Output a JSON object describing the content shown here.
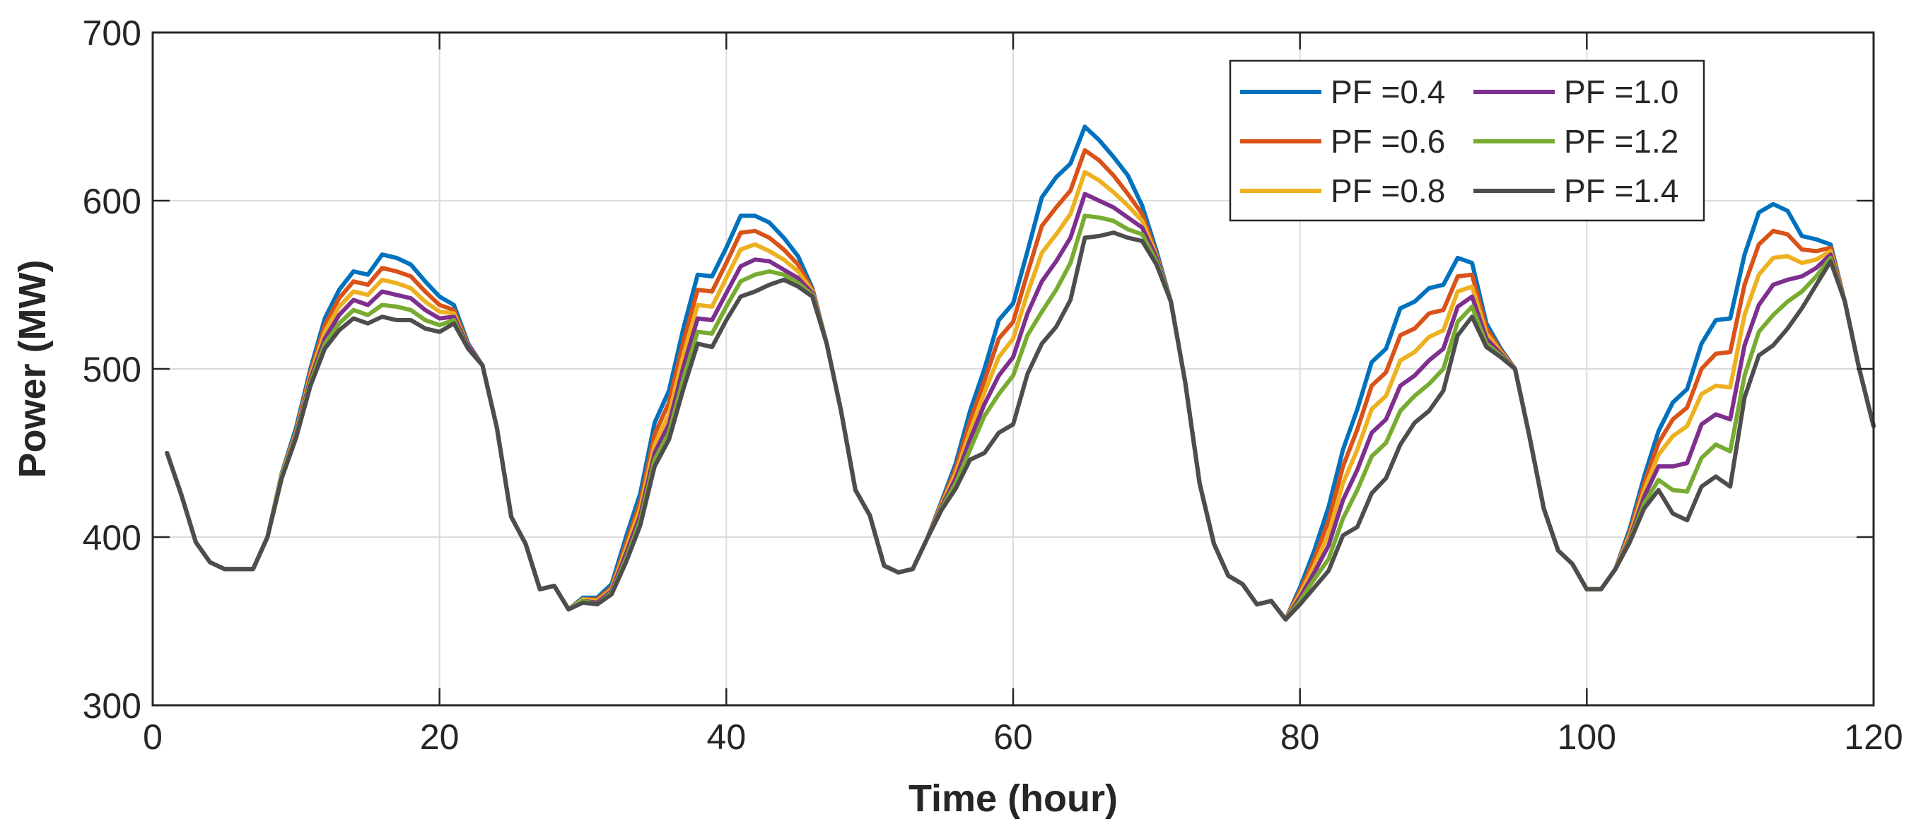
{
  "chart_data": {
    "type": "line",
    "title": "",
    "xlabel": "Time (hour)",
    "ylabel": "Power (MW)",
    "xlim": [
      0,
      120
    ],
    "ylim": [
      300,
      700
    ],
    "xticks": [
      0,
      20,
      40,
      60,
      80,
      100,
      120
    ],
    "yticks": [
      300,
      400,
      500,
      600,
      700
    ],
    "grid": true,
    "legend_position": "top-right",
    "x": [
      1,
      2,
      3,
      4,
      5,
      6,
      7,
      8,
      9,
      10,
      11,
      12,
      13,
      14,
      15,
      16,
      17,
      18,
      19,
      20,
      21,
      22,
      23,
      24,
      25,
      26,
      27,
      28,
      29,
      30,
      31,
      32,
      33,
      34,
      35,
      36,
      37,
      38,
      39,
      40,
      41,
      42,
      43,
      44,
      45,
      46,
      47,
      48,
      49,
      50,
      51,
      52,
      53,
      54,
      55,
      56,
      57,
      58,
      59,
      60,
      61,
      62,
      63,
      64,
      65,
      66,
      67,
      68,
      69,
      70,
      71,
      72,
      73,
      74,
      75,
      76,
      77,
      78,
      79,
      80,
      81,
      82,
      83,
      84,
      85,
      86,
      87,
      88,
      89,
      90,
      91,
      92,
      93,
      94,
      95,
      96,
      97,
      98,
      99,
      100,
      101,
      102,
      103,
      104,
      105,
      106,
      107,
      108,
      109,
      110,
      111,
      112,
      113,
      114,
      115,
      116,
      117,
      118,
      119,
      120
    ],
    "series": [
      {
        "name": "PF =0.4",
        "color": "#0072BD",
        "values": [
          450,
          425,
          397,
          385,
          381,
          381,
          381,
          400,
          438,
          465,
          500,
          530,
          547,
          558,
          556,
          568,
          566,
          562,
          552,
          543,
          538,
          515,
          502,
          465,
          412,
          396,
          369,
          371,
          357,
          364,
          364,
          372,
          400,
          426,
          468,
          487,
          524,
          556,
          555,
          572,
          591,
          591,
          587,
          578,
          567,
          548,
          515,
          475,
          428,
          413,
          383,
          379,
          381,
          399,
          421,
          444,
          475,
          500,
          529,
          539,
          570,
          602,
          614,
          622,
          644,
          636,
          626,
          615,
          597,
          570,
          540,
          492,
          432,
          396,
          377,
          372,
          360,
          362,
          351,
          370,
          392,
          418,
          452,
          476,
          504,
          512,
          536,
          540,
          548,
          550,
          566,
          563,
          527,
          512,
          500,
          460,
          417,
          392,
          384,
          369,
          369,
          381,
          405,
          436,
          463,
          480,
          488,
          515,
          529,
          530,
          568,
          593,
          598,
          594,
          579,
          577,
          574,
          540,
          500,
          466
        ]
      },
      {
        "name": "PF =0.6",
        "color": "#D95319",
        "values": [
          450,
          425,
          397,
          385,
          381,
          381,
          381,
          400,
          437,
          463,
          498,
          526,
          542,
          552,
          550,
          560,
          558,
          555,
          546,
          538,
          535,
          514,
          502,
          465,
          412,
          396,
          369,
          371,
          357,
          363,
          363,
          370,
          396,
          421,
          461,
          480,
          516,
          547,
          546,
          563,
          581,
          582,
          578,
          571,
          562,
          547,
          515,
          475,
          428,
          413,
          383,
          379,
          381,
          399,
          420,
          441,
          469,
          493,
          518,
          528,
          557,
          585,
          596,
          606,
          630,
          624,
          615,
          604,
          592,
          568,
          540,
          492,
          432,
          396,
          377,
          372,
          360,
          362,
          351,
          368,
          387,
          410,
          442,
          464,
          490,
          498,
          520,
          524,
          533,
          535,
          555,
          556,
          524,
          511,
          500,
          460,
          417,
          392,
          384,
          369,
          369,
          381,
          403,
          432,
          456,
          470,
          477,
          500,
          509,
          510,
          550,
          574,
          582,
          580,
          571,
          570,
          572,
          540,
          500,
          466
        ]
      },
      {
        "name": "PF =0.8",
        "color": "#EDB120",
        "values": [
          450,
          425,
          397,
          385,
          381,
          381,
          381,
          400,
          437,
          462,
          496,
          522,
          537,
          546,
          544,
          553,
          551,
          548,
          540,
          534,
          533,
          513,
          502,
          465,
          412,
          396,
          369,
          371,
          357,
          363,
          362,
          369,
          393,
          417,
          455,
          473,
          508,
          538,
          537,
          554,
          571,
          574,
          570,
          565,
          558,
          546,
          515,
          475,
          428,
          413,
          383,
          379,
          381,
          399,
          419,
          438,
          463,
          486,
          507,
          518,
          545,
          569,
          580,
          592,
          617,
          612,
          605,
          597,
          588,
          567,
          540,
          492,
          432,
          396,
          377,
          372,
          360,
          362,
          351,
          366,
          383,
          402,
          432,
          452,
          476,
          484,
          505,
          510,
          519,
          523,
          546,
          549,
          521,
          510,
          500,
          460,
          417,
          392,
          384,
          369,
          369,
          381,
          401,
          428,
          449,
          460,
          466,
          485,
          490,
          489,
          532,
          556,
          566,
          567,
          563,
          565,
          570,
          540,
          500,
          466
        ]
      },
      {
        "name": "PF =1.0",
        "color": "#7E2F8E",
        "values": [
          450,
          425,
          397,
          385,
          381,
          381,
          381,
          400,
          436,
          461,
          494,
          518,
          532,
          541,
          538,
          546,
          544,
          542,
          535,
          530,
          531,
          513,
          502,
          465,
          412,
          396,
          369,
          371,
          357,
          362,
          361,
          368,
          390,
          413,
          450,
          467,
          501,
          530,
          529,
          545,
          561,
          565,
          564,
          559,
          554,
          545,
          515,
          475,
          428,
          413,
          383,
          379,
          381,
          399,
          418,
          435,
          458,
          479,
          496,
          507,
          533,
          552,
          564,
          578,
          604,
          600,
          596,
          590,
          584,
          566,
          540,
          492,
          432,
          396,
          377,
          372,
          360,
          362,
          351,
          364,
          379,
          395,
          422,
          440,
          462,
          470,
          490,
          496,
          505,
          512,
          537,
          543,
          518,
          509,
          500,
          460,
          417,
          392,
          384,
          369,
          369,
          381,
          399,
          424,
          442,
          442,
          444,
          467,
          473,
          470,
          514,
          538,
          550,
          553,
          555,
          560,
          568,
          540,
          500,
          466
        ]
      },
      {
        "name": "PF =1.2",
        "color": "#77AC30",
        "values": [
          450,
          425,
          397,
          385,
          381,
          381,
          381,
          400,
          436,
          460,
          492,
          515,
          527,
          535,
          532,
          538,
          537,
          535,
          529,
          526,
          529,
          512,
          502,
          465,
          412,
          396,
          369,
          371,
          357,
          362,
          360,
          367,
          387,
          410,
          446,
          462,
          494,
          522,
          521,
          537,
          552,
          556,
          558,
          556,
          551,
          544,
          515,
          475,
          428,
          413,
          383,
          379,
          381,
          399,
          417,
          432,
          452,
          472,
          485,
          496,
          520,
          534,
          547,
          563,
          591,
          590,
          588,
          583,
          580,
          564,
          540,
          492,
          432,
          396,
          377,
          372,
          360,
          362,
          351,
          362,
          375,
          387,
          411,
          428,
          448,
          456,
          475,
          484,
          491,
          500,
          528,
          537,
          515,
          508,
          500,
          460,
          417,
          392,
          384,
          369,
          369,
          381,
          398,
          420,
          434,
          428,
          427,
          447,
          455,
          451,
          496,
          522,
          532,
          540,
          546,
          555,
          566,
          540,
          500,
          466
        ]
      },
      {
        "name": "PF =1.4",
        "color": "#4D4D4D",
        "values": [
          450,
          425,
          397,
          385,
          381,
          381,
          381,
          400,
          435,
          459,
          490,
          512,
          523,
          530,
          527,
          531,
          529,
          529,
          524,
          522,
          527,
          512,
          502,
          465,
          412,
          396,
          369,
          371,
          357,
          361,
          360,
          366,
          385,
          407,
          442,
          458,
          488,
          515,
          513,
          529,
          543,
          546,
          550,
          553,
          549,
          543,
          515,
          475,
          428,
          413,
          383,
          379,
          381,
          399,
          416,
          429,
          446,
          450,
          462,
          467,
          497,
          515,
          525,
          541,
          578,
          579,
          581,
          578,
          576,
          562,
          540,
          492,
          432,
          396,
          377,
          372,
          360,
          362,
          351,
          360,
          370,
          380,
          401,
          406,
          426,
          435,
          455,
          468,
          475,
          487,
          520,
          531,
          513,
          507,
          500,
          460,
          417,
          392,
          384,
          369,
          369,
          381,
          397,
          417,
          428,
          414,
          410,
          430,
          436,
          430,
          483,
          508,
          514,
          524,
          536,
          550,
          564,
          540,
          500,
          466
        ]
      }
    ]
  }
}
